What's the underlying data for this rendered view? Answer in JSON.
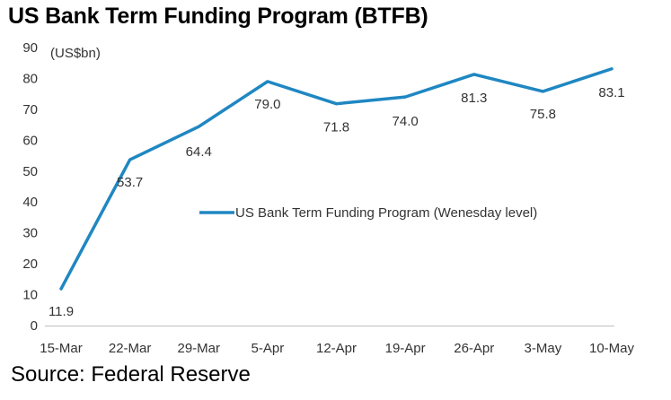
{
  "title": "US Bank Term Funding Program (BTFB)",
  "source": "Source: Federal Reserve",
  "colors": {
    "line": "#1f87c2",
    "axis": "#bfbfbf",
    "text": "#333333"
  },
  "chart_data": {
    "type": "line",
    "unit_label": "(US$bn)",
    "categories": [
      "15-Mar",
      "22-Mar",
      "29-Mar",
      "5-Apr",
      "12-Apr",
      "19-Apr",
      "26-Apr",
      "3-May",
      "10-May"
    ],
    "series": [
      {
        "name": "US Bank Term Funding Program (Wenesday level)",
        "values": [
          11.9,
          53.7,
          64.4,
          79.0,
          71.8,
          74.0,
          81.3,
          75.8,
          83.1
        ],
        "labels": [
          "11.9",
          "53.7",
          "64.4",
          "79.0",
          "71.8",
          "74.0",
          "81.3",
          "75.8",
          "83.1"
        ]
      }
    ],
    "yticks": [
      0,
      10,
      20,
      30,
      40,
      50,
      60,
      70,
      80,
      90
    ],
    "ylim": [
      0,
      90
    ],
    "grid": false,
    "legend": "center-right"
  }
}
